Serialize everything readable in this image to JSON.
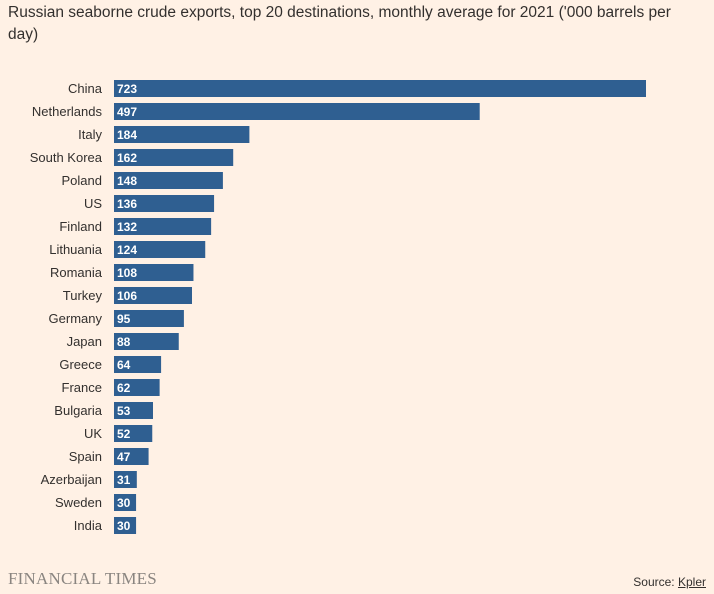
{
  "chart_data": {
    "type": "bar",
    "orientation": "horizontal",
    "title": "Russian seaborne crude exports, top 20 destinations, monthly average for 2021 ('000 barrels per day)",
    "categories": [
      "China",
      "Netherlands",
      "Italy",
      "South Korea",
      "Poland",
      "US",
      "Finland",
      "Lithuania",
      "Romania",
      "Turkey",
      "Germany",
      "Japan",
      "Greece",
      "France",
      "Bulgaria",
      "UK",
      "Spain",
      "Azerbaijan",
      "Sweden",
      "India"
    ],
    "values": [
      723,
      497,
      184,
      162,
      148,
      136,
      132,
      124,
      108,
      106,
      95,
      88,
      64,
      62,
      53,
      52,
      47,
      31,
      30,
      30
    ],
    "xlim": [
      0,
      723
    ],
    "grid": false,
    "legend": "none",
    "bar_color": "#2f5f91"
  },
  "footer": {
    "brand": "FINANCIAL TIMES",
    "source_prefix": "Source: ",
    "source_link": "Kpler"
  }
}
